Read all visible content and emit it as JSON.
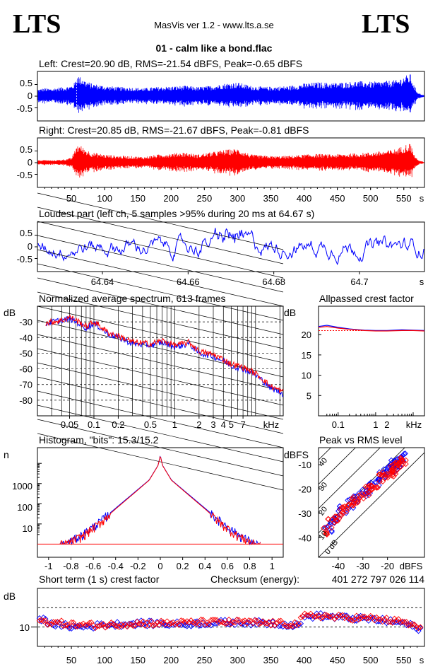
{
  "header": {
    "logo_left": "LTS",
    "logo_right": "LTS",
    "app_title": "MasVis ver 1.2 - www.lts.a.se",
    "file_title": "01 - calm like a bond.flac"
  },
  "colors": {
    "left": "#0000ff",
    "right": "#ff0000",
    "ref": "#ff0000"
  },
  "chart_data": [
    {
      "id": "left_waveform",
      "type": "line",
      "title": "Left: Crest=20.90 dB, RMS=-21.54 dBFS, Peak=-0.65 dBFS",
      "ylim": [
        -1,
        1
      ],
      "yticks": [
        "0.5",
        "0",
        "-0.5"
      ],
      "xlim": [
        0,
        580
      ],
      "envelope_x": [
        0,
        10,
        20,
        30,
        40,
        50,
        55,
        58,
        60,
        62,
        66,
        70,
        80,
        100,
        120,
        140,
        160,
        180,
        200,
        220,
        240,
        260,
        280,
        300,
        320,
        340,
        360,
        380,
        400,
        420,
        440,
        460,
        480,
        500,
        520,
        540,
        550,
        560,
        565,
        570,
        575,
        580
      ],
      "envelope_y": [
        0.3,
        0.35,
        0.32,
        0.38,
        0.4,
        0.45,
        0.6,
        0.9,
        0.95,
        0.85,
        0.8,
        0.7,
        0.55,
        0.45,
        0.4,
        0.38,
        0.35,
        0.4,
        0.42,
        0.45,
        0.4,
        0.45,
        0.55,
        0.6,
        0.45,
        0.4,
        0.42,
        0.45,
        0.55,
        0.6,
        0.58,
        0.6,
        0.65,
        0.62,
        0.65,
        0.7,
        0.85,
        0.95,
        0.5,
        0.2,
        0.1,
        0.05
      ]
    },
    {
      "id": "right_waveform",
      "type": "line",
      "title": "Right: Crest=20.85 dB, RMS=-21.67 dBFS, Peak=-0.81 dBFS",
      "ylim": [
        -1,
        1
      ],
      "yticks": [
        "0.5",
        "0",
        "-0.5"
      ],
      "xlabel_unit": "s",
      "xticks": [
        "50",
        "100",
        "150",
        "200",
        "250",
        "300",
        "350",
        "400",
        "450",
        "500",
        "550"
      ],
      "xlim": [
        0,
        580
      ],
      "envelope_x": [
        0,
        10,
        20,
        30,
        40,
        50,
        55,
        58,
        60,
        62,
        66,
        70,
        80,
        100,
        120,
        140,
        160,
        180,
        200,
        220,
        240,
        260,
        280,
        300,
        320,
        340,
        360,
        380,
        400,
        420,
        440,
        460,
        480,
        500,
        520,
        540,
        550,
        560,
        565,
        570,
        575,
        580
      ],
      "envelope_y": [
        0.1,
        0.12,
        0.1,
        0.12,
        0.15,
        0.2,
        0.5,
        0.75,
        0.8,
        0.75,
        0.7,
        0.6,
        0.45,
        0.35,
        0.3,
        0.28,
        0.25,
        0.35,
        0.4,
        0.45,
        0.35,
        0.45,
        0.55,
        0.6,
        0.35,
        0.3,
        0.28,
        0.3,
        0.35,
        0.38,
        0.35,
        0.38,
        0.4,
        0.45,
        0.5,
        0.6,
        0.75,
        0.85,
        0.4,
        0.15,
        0.08,
        0.03
      ]
    },
    {
      "id": "loudest_part",
      "type": "line",
      "title": "Loudest part (left  ch, 5 samples >95% during 20 ms at 64.67 s)",
      "ylim": [
        -1,
        1
      ],
      "yticks": [
        "0.5",
        "0",
        "-0.5"
      ],
      "xlim": [
        64.625,
        64.715
      ],
      "xticks": [
        "64.64",
        "64.66",
        "64.68",
        "64.7"
      ],
      "xlabel_unit": "s"
    },
    {
      "id": "spectrum",
      "type": "line",
      "title": "Normalized average spectrum, 613 frames",
      "ylabel": "dB",
      "yticks": [
        "-30",
        "-40",
        "-50",
        "-60",
        "-70",
        "-80"
      ],
      "xticks": [
        "0.05",
        "0.1",
        "0.2",
        "0.5",
        "1",
        "2",
        "3",
        "4",
        "5",
        "7"
      ],
      "xlabel_unit": "kHz",
      "xlim": [
        0.02,
        22
      ],
      "ylim": [
        -90,
        -20
      ],
      "x_scale": "log",
      "series": [
        {
          "color": "#0000ff",
          "x": [
            0.02,
            0.03,
            0.04,
            0.05,
            0.06,
            0.08,
            0.1,
            0.15,
            0.2,
            0.3,
            0.5,
            0.7,
            1,
            1.5,
            2,
            3,
            4,
            5,
            7,
            10,
            15,
            22
          ],
          "y": [
            -33,
            -30,
            -29,
            -28,
            -30,
            -34,
            -31,
            -38,
            -40,
            -44,
            -45,
            -43,
            -46,
            -44,
            -50,
            -52,
            -55,
            -58,
            -60,
            -64,
            -72,
            -76
          ]
        },
        {
          "color": "#ff0000",
          "x": [
            0.02,
            0.03,
            0.04,
            0.05,
            0.06,
            0.08,
            0.1,
            0.15,
            0.2,
            0.3,
            0.5,
            0.7,
            1,
            1.5,
            2,
            3,
            4,
            5,
            7,
            10,
            15,
            22
          ],
          "y": [
            -32,
            -30,
            -29,
            -27,
            -29,
            -33,
            -30,
            -37,
            -39,
            -43,
            -44,
            -42,
            -45,
            -43,
            -49,
            -51,
            -54,
            -57,
            -59,
            -63,
            -71,
            -75
          ]
        }
      ]
    },
    {
      "id": "allpassed_crest",
      "type": "line",
      "title": "Allpassed crest factor",
      "ylabel": "dB",
      "yticks": [
        "20",
        "15",
        "10",
        "5"
      ],
      "xticks": [
        "0.1",
        "1",
        "2"
      ],
      "xlabel_unit": "kHz",
      "xlim": [
        0.03,
        20
      ],
      "ylim": [
        0,
        27
      ],
      "x_scale": "log",
      "reference": 21,
      "series": [
        {
          "color": "#0000ff",
          "x": [
            0.03,
            0.05,
            0.1,
            0.2,
            0.5,
            1,
            2,
            5,
            10,
            20
          ],
          "y": [
            22,
            22.3,
            21.8,
            21.4,
            21.1,
            21,
            21,
            21.2,
            21.1,
            21
          ]
        },
        {
          "color": "#ff0000",
          "x": [
            0.03,
            0.05,
            0.1,
            0.2,
            0.5,
            1,
            2,
            5,
            10,
            20
          ],
          "y": [
            21.8,
            22,
            21.6,
            21.3,
            21,
            20.9,
            20.9,
            21,
            21,
            20.9
          ]
        }
      ]
    },
    {
      "id": "histogram",
      "type": "line",
      "title": "Histogram, \"bits\": 15.3/15.2",
      "ylabel": "n",
      "yticks": [
        "1000",
        "100",
        "10"
      ],
      "xticks": [
        "-1",
        "-0.8",
        "-0.6",
        "-0.4",
        "-0.2",
        "0",
        "0.2",
        "0.4",
        "0.6",
        "0.8",
        "1"
      ],
      "xlim": [
        -1.1,
        1.1
      ],
      "y_scale": "log",
      "series": [
        {
          "color": "#0000ff",
          "x": [
            -0.85,
            -0.7,
            -0.55,
            -0.4,
            -0.25,
            -0.1,
            -0.02,
            0,
            0.02,
            0.1,
            0.25,
            0.4,
            0.55,
            0.7,
            0.85
          ],
          "y": [
            1,
            3,
            12,
            60,
            300,
            1500,
            8000,
            25000,
            8000,
            1500,
            300,
            60,
            12,
            3,
            1
          ]
        },
        {
          "color": "#ff0000",
          "x": [
            -0.85,
            -0.7,
            -0.55,
            -0.4,
            -0.25,
            -0.1,
            -0.02,
            0,
            0.02,
            0.1,
            0.25,
            0.4,
            0.55,
            0.7,
            0.85
          ],
          "y": [
            1,
            2.5,
            10,
            55,
            280,
            1450,
            7800,
            24000,
            7800,
            1450,
            280,
            55,
            10,
            2.5,
            1
          ]
        }
      ]
    },
    {
      "id": "peak_vs_rms",
      "type": "scatter",
      "title": "Peak vs RMS level",
      "ylabel": "dBFS",
      "xlabel_unit": "dBFS",
      "yticks": [
        "-10",
        "-20",
        "-30",
        "-40"
      ],
      "xticks": [
        "-40",
        "-30",
        "-20"
      ],
      "xlim": [
        -48,
        -5
      ],
      "ylim": [
        -48,
        -3
      ],
      "crest_labels": [
        "40",
        "30",
        "20",
        "10",
        "0 dB"
      ],
      "series": [
        {
          "color": "#0000ff",
          "x": [
            -44,
            -42,
            -40,
            -38,
            -35,
            -33,
            -30,
            -28,
            -26,
            -24,
            -22,
            -20,
            -19,
            -18,
            -17,
            -16,
            -15,
            -14
          ],
          "y": [
            -36,
            -33,
            -31,
            -29,
            -26,
            -24,
            -22,
            -20,
            -18,
            -17,
            -15,
            -13,
            -12,
            -11,
            -10,
            -9,
            -8.5,
            -7
          ]
        },
        {
          "color": "#ff0000",
          "x": [
            -45,
            -43,
            -41,
            -39,
            -37,
            -35,
            -33,
            -31,
            -29,
            -27,
            -25,
            -23,
            -21,
            -19,
            -18,
            -17,
            -16,
            -15,
            -14
          ],
          "y": [
            -37,
            -34,
            -32,
            -30,
            -28,
            -27,
            -25,
            -23,
            -21,
            -20,
            -18,
            -16,
            -14,
            -13,
            -12,
            -11,
            -10,
            -9,
            -8
          ]
        }
      ]
    },
    {
      "id": "short_term_crest",
      "type": "scatter",
      "title": "Short term (1 s) crest factor",
      "checksum_label": "Checksum (energy):",
      "checksum_value": "401 272 797 026 114",
      "ylabel": "dB",
      "yticks": [
        "10"
      ],
      "xticks": [
        "50",
        "100",
        "150",
        "200",
        "250",
        "300",
        "350",
        "400",
        "450",
        "500",
        "550"
      ],
      "xlabel_unit": "s",
      "xlim": [
        0,
        580
      ],
      "ylim": [
        0,
        30
      ],
      "reference_lines": [
        10,
        20
      ],
      "series": [
        {
          "color": "#0000ff",
          "x": [
            5,
            30,
            60,
            100,
            150,
            200,
            250,
            300,
            350,
            390,
            400,
            420,
            450,
            500,
            550,
            575
          ],
          "y": [
            14,
            11,
            10,
            11,
            12,
            11.5,
            12,
            12.5,
            12,
            11,
            15,
            16,
            15,
            14,
            12,
            9
          ]
        },
        {
          "color": "#ff0000",
          "x": [
            5,
            30,
            60,
            100,
            150,
            200,
            250,
            300,
            350,
            390,
            400,
            420,
            450,
            500,
            550,
            575
          ],
          "y": [
            13,
            12,
            11,
            11,
            12,
            12,
            12.5,
            12.5,
            12,
            11.5,
            15.5,
            16,
            15,
            14.5,
            12.5,
            9.5
          ]
        }
      ]
    }
  ]
}
